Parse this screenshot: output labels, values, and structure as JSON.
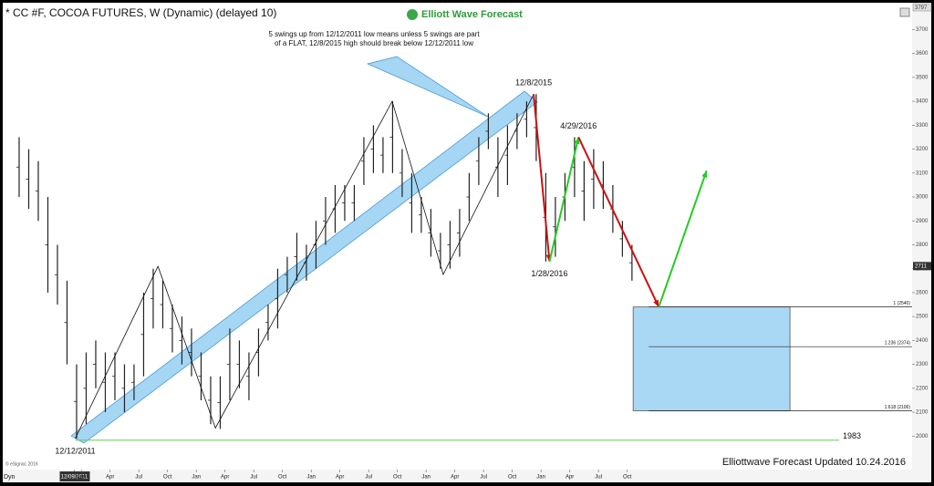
{
  "chart_data": {
    "type": "price",
    "title": "* CC #F, COCOA FUTURES, W (Dynamic) (delayed 10)",
    "brand": "Elliott Wave Forecast",
    "note": [
      "5 swings up from 12/12/2011 low means unless 5 swings are part",
      "of a FLAT, 12/8/2015 high should break below 12/12/2011 low"
    ],
    "footer": "Elliottwave Forecast Updated 10.24.2016",
    "copyright": "© eSignal, 2016",
    "interval_label": "Dyn",
    "xlim": [
      "2011-04-25",
      "2019-03-24"
    ],
    "ylim": [
      1860,
      3797
    ],
    "yticks": [
      2000,
      2100,
      2200,
      2300,
      2400,
      2500,
      2600,
      2700,
      2800,
      2900,
      3000,
      3100,
      3200,
      3300,
      3400,
      3500,
      3600,
      3700
    ],
    "xticks": [
      {
        "value": "2011-12-09",
        "label": "12/09/2011"
      },
      {
        "value": "2012-01-01",
        "label": "Jan"
      },
      {
        "value": "2012-04-01",
        "label": "Apr"
      },
      {
        "value": "2012-07-01",
        "label": "Jul"
      },
      {
        "value": "2012-10-01",
        "label": "Oct"
      },
      {
        "value": "2013-01-01",
        "label": "Jan"
      },
      {
        "value": "2013-04-01",
        "label": "Apr"
      },
      {
        "value": "2013-07-01",
        "label": "Jul"
      },
      {
        "value": "2013-10-01",
        "label": "Oct"
      },
      {
        "value": "2014-01-01",
        "label": "Jan"
      },
      {
        "value": "2014-04-01",
        "label": "Apr"
      },
      {
        "value": "2014-07-01",
        "label": "Jul"
      },
      {
        "value": "2014-10-01",
        "label": "Oct"
      },
      {
        "value": "2015-01-01",
        "label": "Jan"
      },
      {
        "value": "2015-04-01",
        "label": "Apr"
      },
      {
        "value": "2015-07-01",
        "label": "Jul"
      },
      {
        "value": "2015-10-01",
        "label": "Oct"
      },
      {
        "value": "2016-01-01",
        "label": "Jan"
      },
      {
        "value": "2016-04-01",
        "label": "Apr"
      },
      {
        "value": "2016-07-01",
        "label": "Jul"
      },
      {
        "value": "2016-10-01",
        "label": "Oct"
      }
    ],
    "bars": {
      "color": "#222222",
      "x": [
        "2011-06",
        "2011-07",
        "2011-08",
        "2011-09",
        "2011-10",
        "2011-11",
        "2011-12",
        "2012-01",
        "2012-02",
        "2012-03",
        "2012-04",
        "2012-05",
        "2012-06",
        "2012-07",
        "2012-08",
        "2012-09",
        "2012-10",
        "2012-11",
        "2012-12",
        "2013-01",
        "2013-02",
        "2013-03",
        "2013-04",
        "2013-05",
        "2013-06",
        "2013-07",
        "2013-08",
        "2013-09",
        "2013-10",
        "2013-11",
        "2013-12",
        "2014-01",
        "2014-02",
        "2014-03",
        "2014-04",
        "2014-05",
        "2014-06",
        "2014-07",
        "2014-08",
        "2014-09",
        "2014-10",
        "2014-11",
        "2014-12",
        "2015-01",
        "2015-02",
        "2015-03",
        "2015-04",
        "2015-05",
        "2015-06",
        "2015-07",
        "2015-08",
        "2015-09",
        "2015-10",
        "2015-11",
        "2015-12",
        "2016-01",
        "2016-02",
        "2016-03",
        "2016-04",
        "2016-05",
        "2016-06",
        "2016-07",
        "2016-08",
        "2016-09",
        "2016-10"
      ],
      "low": [
        3000,
        2950,
        2900,
        2600,
        2550,
        2300,
        1990,
        2050,
        2200,
        2100,
        2150,
        2100,
        2150,
        2250,
        2450,
        2450,
        2350,
        2300,
        2250,
        2150,
        2050,
        2030,
        2150,
        2200,
        2150,
        2250,
        2400,
        2450,
        2600,
        2650,
        2650,
        2700,
        2800,
        2850,
        2900,
        2900,
        3050,
        3100,
        3100,
        3100,
        3000,
        2850,
        2850,
        2750,
        2700,
        2700,
        2750,
        2900,
        3050,
        3200,
        3000,
        3050,
        3200,
        3250,
        3150,
        2730,
        2750,
        2900,
        3000,
        2900,
        2950,
        2950,
        2850,
        2750,
        2650
      ],
      "high": [
        3250,
        3200,
        3150,
        3000,
        2800,
        2650,
        2300,
        2350,
        2400,
        2350,
        2350,
        2300,
        2300,
        2600,
        2700,
        2650,
        2550,
        2500,
        2450,
        2350,
        2250,
        2250,
        2450,
        2400,
        2350,
        2450,
        2550,
        2700,
        2750,
        2850,
        2800,
        2900,
        3000,
        3050,
        3050,
        3050,
        3250,
        3300,
        3250,
        3400,
        3200,
        3100,
        3000,
        2950,
        2850,
        2900,
        2950,
        3100,
        3250,
        3350,
        3250,
        3300,
        3350,
        3400,
        3430,
        3100,
        3000,
        3100,
        3250,
        3150,
        3200,
        3150,
        3050,
        2900,
        2800
      ]
    },
    "series": [
      {
        "color": "#111111",
        "x": [
          "2011-12-12",
          "2012-09-01",
          "2013-03-01",
          "2014-09-15",
          "2015-02-25",
          "2015-12-08"
        ],
        "values": [
          1990,
          2710,
          2034,
          3400,
          2676,
          3430
        ]
      },
      {
        "color": "#cc1111",
        "x": [
          "2015-12-08",
          "2016-01-28"
        ],
        "values": [
          3430,
          2730
        ]
      },
      {
        "color": "#22cc22",
        "x": [
          "2016-01-28",
          "2016-04-29"
        ],
        "values": [
          2730,
          3250
        ]
      },
      {
        "color": "#cc1111",
        "x": [
          "2016-04-29",
          "2017-01-10"
        ],
        "values": [
          3250,
          2540
        ]
      },
      {
        "color": "#22cc22",
        "x": [
          "2017-01-10",
          "2017-06-10"
        ],
        "values": [
          2540,
          3110
        ]
      }
    ],
    "point_labels": [
      {
        "label": "12/12/2011",
        "x": "2011-12-12",
        "value": 1990
      },
      {
        "label": "12/8/2015",
        "x": "2015-12-08",
        "value": 3430
      },
      {
        "label": "1/28/2016",
        "x": "2016-01-28",
        "value": 2730
      },
      {
        "label": "4/29/2016",
        "x": "2016-04-29",
        "value": 3250
      }
    ],
    "target_box": {
      "color": "#a9d8f5",
      "x": [
        "2016-10-20",
        "2018-03-01"
      ]
    },
    "levels": [
      {
        "value": 2540,
        "label": "1 (2540)"
      },
      {
        "value": 2374,
        "label": "1.236 (2374)"
      },
      {
        "value": 2106,
        "label": "1.618 (2106)"
      }
    ],
    "support": {
      "value": 1983,
      "label": "1983",
      "color": "#66cc55"
    },
    "last_price": {
      "value": 2711,
      "label": "2711"
    }
  }
}
